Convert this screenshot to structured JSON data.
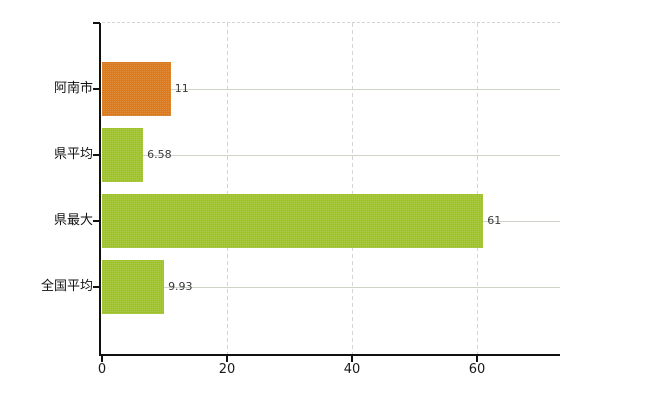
{
  "chart_data": {
    "type": "bar",
    "orientation": "horizontal",
    "title": "",
    "xlabel": "",
    "ylabel": "",
    "categories": [
      "阿南市",
      "県平均",
      "県最大",
      "全国平均"
    ],
    "values": [
      11,
      6.58,
      61,
      9.93
    ],
    "value_labels": [
      "11",
      "6.58",
      "61",
      "9.93"
    ],
    "bar_colors": [
      "#de7c1d",
      "#a1c52b",
      "#a1c52b",
      "#a1c52b"
    ],
    "xticks": [
      0,
      20,
      40,
      60
    ],
    "xtick_labels": [
      "0",
      "20",
      "40",
      "60"
    ],
    "xlim": [
      0,
      73.3
    ],
    "grid": {
      "vertical": "dashed",
      "horizontal": "solid",
      "top_border": "dashed"
    },
    "legend": "none",
    "colors": {
      "axis": "#111111",
      "dashed_gridline": "#d7d3d7",
      "solid_gridline": "#cdd4ca",
      "category_label": "#111111",
      "value_label": "#3a3a3a",
      "background": "#ffffff"
    }
  }
}
